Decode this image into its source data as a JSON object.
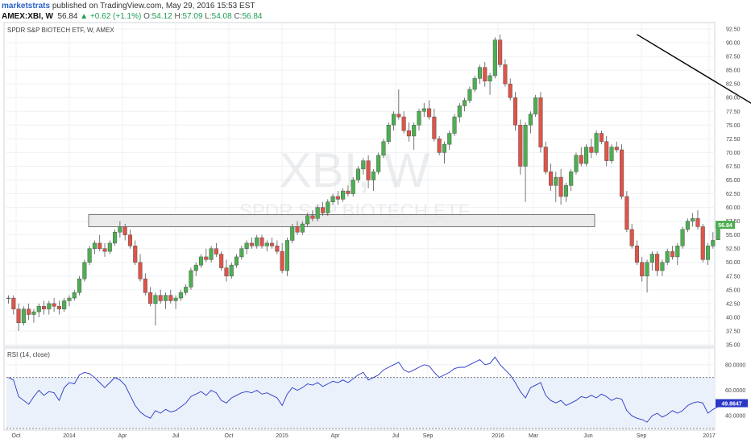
{
  "header": {
    "author": "marketstrats",
    "published_text": "published on TradingView.com, May 29, 2016 15:53 EST",
    "symbol": "AMEX:XBI, W",
    "last_price": "56.84",
    "change": "+0.62 (+1.1%)",
    "open_label": "O:",
    "open": "54.12",
    "high_label": "H:",
    "high": "57.09",
    "low_label": "L:",
    "low": "54.08",
    "close_label": "C:",
    "close": "56.84"
  },
  "colors": {
    "up": "#4caf50",
    "down": "#e05348",
    "grid": "#eef1f5",
    "trendline": "#000000",
    "zone_fill": "#e4e4e4",
    "zone_stroke": "#555555",
    "rsi_line": "#2a37c6",
    "rsi_band": "#eaf1fb",
    "price_tag": "#4caf50",
    "rsi_tag": "#2a37c6"
  },
  "chart_data": [
    {
      "type": "candlestick",
      "title": "SPDR S&P BIOTECH ETF, W, AMEX",
      "watermark_big": "XBI, W",
      "watermark_small": "SPDR S&P BIOTECH ETF",
      "ylim": [
        35.0,
        92.5
      ],
      "y_ticks": [
        "92.50",
        "90.00",
        "87.50",
        "85.00",
        "82.50",
        "80.00",
        "77.50",
        "75.00",
        "72.50",
        "70.00",
        "67.50",
        "65.00",
        "62.50",
        "60.00",
        "57.50",
        "55.00",
        "52.50",
        "50.00",
        "47.50",
        "45.00",
        "42.50",
        "40.00",
        "37.50",
        "35.00"
      ],
      "x_ticks": [
        "Oct",
        "2014",
        "Apr",
        "Jul",
        "Oct",
        "2015",
        "Apr",
        "Jul",
        "Sep",
        "2016",
        "Mar",
        "Jun",
        "Sep",
        "2017"
      ],
      "last_price_label": "56.84",
      "resistance_zone": [
        56.5,
        58.7
      ],
      "trendline": {
        "from": {
          "bar": 124,
          "value": 91.5
        },
        "to": {
          "bar": 214,
          "value": 41.5
        }
      },
      "series": [
        {
          "values": [
            [
              43.5,
              44.0,
              42.5,
              43.5
            ],
            [
              43.5,
              44.0,
              40.5,
              41.5
            ],
            [
              41.5,
              42.5,
              37.5,
              39.0
            ],
            [
              39.0,
              42.0,
              38.5,
              41.5
            ],
            [
              41.5,
              42.5,
              39.5,
              40.5
            ],
            [
              40.5,
              41.5,
              39.0,
              41.0
            ],
            [
              41.0,
              42.5,
              40.0,
              42.0
            ],
            [
              42.0,
              43.0,
              40.5,
              41.5
            ],
            [
              41.5,
              43.0,
              40.5,
              42.5
            ],
            [
              42.5,
              43.5,
              41.0,
              42.0
            ],
            [
              42.0,
              43.0,
              40.5,
              41.5
            ],
            [
              41.5,
              43.5,
              41.0,
              43.0
            ],
            [
              43.0,
              44.0,
              42.0,
              43.5
            ],
            [
              43.5,
              45.0,
              43.0,
              44.5
            ],
            [
              44.5,
              47.5,
              44.0,
              47.0
            ],
            [
              47.0,
              50.5,
              46.5,
              50.0
            ],
            [
              50.0,
              53.0,
              49.5,
              52.5
            ],
            [
              52.5,
              54.0,
              51.5,
              53.5
            ],
            [
              53.5,
              55.0,
              52.0,
              52.5
            ],
            [
              52.5,
              53.5,
              51.0,
              52.0
            ],
            [
              52.0,
              54.0,
              51.5,
              53.5
            ],
            [
              53.5,
              56.0,
              53.0,
              55.5
            ],
            [
              55.5,
              57.5,
              54.5,
              56.5
            ],
            [
              56.5,
              57.0,
              54.0,
              55.0
            ],
            [
              55.0,
              56.0,
              52.5,
              53.0
            ],
            [
              53.0,
              54.0,
              49.5,
              50.0
            ],
            [
              50.0,
              51.5,
              46.5,
              47.0
            ],
            [
              47.0,
              48.0,
              44.0,
              44.5
            ],
            [
              44.5,
              45.5,
              42.0,
              42.5
            ],
            [
              42.5,
              44.5,
              38.5,
              44.0
            ],
            [
              44.0,
              45.0,
              42.5,
              43.0
            ],
            [
              43.0,
              44.5,
              41.5,
              44.0
            ],
            [
              44.0,
              45.0,
              42.5,
              43.0
            ],
            [
              43.0,
              44.0,
              41.5,
              43.5
            ],
            [
              43.5,
              45.0,
              43.0,
              44.5
            ],
            [
              44.5,
              46.0,
              44.0,
              45.5
            ],
            [
              45.5,
              49.0,
              45.0,
              48.5
            ],
            [
              48.5,
              50.0,
              47.5,
              49.5
            ],
            [
              49.5,
              51.5,
              49.0,
              51.0
            ],
            [
              51.0,
              52.5,
              50.0,
              50.5
            ],
            [
              50.5,
              53.0,
              50.0,
              52.5
            ],
            [
              52.5,
              53.5,
              51.0,
              51.5
            ],
            [
              51.5,
              52.0,
              48.5,
              49.0
            ],
            [
              49.0,
              50.5,
              46.5,
              47.5
            ],
            [
              47.5,
              50.0,
              47.0,
              49.5
            ],
            [
              49.5,
              51.5,
              49.0,
              51.0
            ],
            [
              51.0,
              53.0,
              50.5,
              52.5
            ],
            [
              52.5,
              54.0,
              51.5,
              53.5
            ],
            [
              53.5,
              54.5,
              52.5,
              53.0
            ],
            [
              53.0,
              55.0,
              52.5,
              54.5
            ],
            [
              54.5,
              55.0,
              52.5,
              53.0
            ],
            [
              53.0,
              54.0,
              52.0,
              53.5
            ],
            [
              53.5,
              54.5,
              52.5,
              53.0
            ],
            [
              53.0,
              54.0,
              51.5,
              52.0
            ],
            [
              52.0,
              53.5,
              48.0,
              48.5
            ],
            [
              48.5,
              54.5,
              47.5,
              54.0
            ],
            [
              54.0,
              57.0,
              53.5,
              56.5
            ],
            [
              56.5,
              57.5,
              55.0,
              55.5
            ],
            [
              55.5,
              57.5,
              55.0,
              57.0
            ],
            [
              57.0,
              59.0,
              56.5,
              58.5
            ],
            [
              58.5,
              59.5,
              57.5,
              58.0
            ],
            [
              58.0,
              60.5,
              57.5,
              60.0
            ],
            [
              60.0,
              61.0,
              58.5,
              59.0
            ],
            [
              59.0,
              61.5,
              58.5,
              61.0
            ],
            [
              61.0,
              62.5,
              60.5,
              62.0
            ],
            [
              62.0,
              63.0,
              60.5,
              61.5
            ],
            [
              61.5,
              63.5,
              61.0,
              63.0
            ],
            [
              63.0,
              64.0,
              62.0,
              62.5
            ],
            [
              62.5,
              65.5,
              62.0,
              65.0
            ],
            [
              65.0,
              67.5,
              64.5,
              67.0
            ],
            [
              67.0,
              69.0,
              66.0,
              68.5
            ],
            [
              68.5,
              69.5,
              63.5,
              65.0
            ],
            [
              65.0,
              67.0,
              63.0,
              66.5
            ],
            [
              66.5,
              70.0,
              66.0,
              69.5
            ],
            [
              69.5,
              72.5,
              69.0,
              72.0
            ],
            [
              72.0,
              75.5,
              71.5,
              75.0
            ],
            [
              75.0,
              77.5,
              74.0,
              77.0
            ],
            [
              77.0,
              81.5,
              76.0,
              76.5
            ],
            [
              76.5,
              77.5,
              73.5,
              74.0
            ],
            [
              74.0,
              75.5,
              72.0,
              73.0
            ],
            [
              73.0,
              75.5,
              70.5,
              75.0
            ],
            [
              75.0,
              78.0,
              74.0,
              77.5
            ],
            [
              77.5,
              79.0,
              76.5,
              78.0
            ],
            [
              78.0,
              79.5,
              76.0,
              76.5
            ],
            [
              76.5,
              78.0,
              72.0,
              72.5
            ],
            [
              72.5,
              73.0,
              69.5,
              70.0
            ],
            [
              70.0,
              72.0,
              68.0,
              71.5
            ],
            [
              71.5,
              74.0,
              70.5,
              73.5
            ],
            [
              73.5,
              77.0,
              73.0,
              76.5
            ],
            [
              76.5,
              79.0,
              75.5,
              78.5
            ],
            [
              78.5,
              80.0,
              77.5,
              79.5
            ],
            [
              79.5,
              82.0,
              79.0,
              81.5
            ],
            [
              81.5,
              84.0,
              81.0,
              83.5
            ],
            [
              83.5,
              86.0,
              82.5,
              85.5
            ],
            [
              85.5,
              86.5,
              82.0,
              83.0
            ],
            [
              83.0,
              84.5,
              80.5,
              84.0
            ],
            [
              84.0,
              91.0,
              83.5,
              90.5
            ],
            [
              90.5,
              91.5,
              85.5,
              86.0
            ],
            [
              86.0,
              87.0,
              82.0,
              82.5
            ],
            [
              82.5,
              83.5,
              79.5,
              80.0
            ],
            [
              80.0,
              81.0,
              74.0,
              75.0
            ],
            [
              75.0,
              76.0,
              66.0,
              67.5
            ],
            [
              67.5,
              75.5,
              61.0,
              75.0
            ],
            [
              75.0,
              77.5,
              73.5,
              77.0
            ],
            [
              77.0,
              80.5,
              76.5,
              80.0
            ],
            [
              80.0,
              81.0,
              70.0,
              71.0
            ],
            [
              71.0,
              72.0,
              66.0,
              66.5
            ],
            [
              66.5,
              68.0,
              63.0,
              64.0
            ],
            [
              64.0,
              66.5,
              61.0,
              65.5
            ],
            [
              65.5,
              67.0,
              60.5,
              62.0
            ],
            [
              62.0,
              64.5,
              61.0,
              64.0
            ],
            [
              64.0,
              67.0,
              63.0,
              66.5
            ],
            [
              66.5,
              70.0,
              66.0,
              69.5
            ],
            [
              69.5,
              71.0,
              67.5,
              68.0
            ],
            [
              68.0,
              71.5,
              67.5,
              71.0
            ],
            [
              71.0,
              72.5,
              69.0,
              70.0
            ],
            [
              70.0,
              74.0,
              69.5,
              73.5
            ],
            [
              73.5,
              74.0,
              71.5,
              72.0
            ],
            [
              72.0,
              73.0,
              67.5,
              68.5
            ],
            [
              68.5,
              71.5,
              68.0,
              71.0
            ],
            [
              71.0,
              72.0,
              70.0,
              70.5
            ],
            [
              70.5,
              71.5,
              61.5,
              62.0
            ],
            [
              62.0,
              63.0,
              55.5,
              56.0
            ],
            [
              56.0,
              57.0,
              52.5,
              53.0
            ],
            [
              53.0,
              54.0,
              49.5,
              50.0
            ],
            [
              50.0,
              51.0,
              46.5,
              47.5
            ],
            [
              47.5,
              50.5,
              44.5,
              50.0
            ],
            [
              50.0,
              52.0,
              48.5,
              51.5
            ],
            [
              51.5,
              52.0,
              47.5,
              48.5
            ],
            [
              48.5,
              50.5,
              47.5,
              50.0
            ],
            [
              50.0,
              52.5,
              49.5,
              52.0
            ],
            [
              52.0,
              53.0,
              50.5,
              51.0
            ],
            [
              51.0,
              53.5,
              49.5,
              53.0
            ],
            [
              53.0,
              56.5,
              52.5,
              56.0
            ],
            [
              56.0,
              58.0,
              55.5,
              57.5
            ],
            [
              57.5,
              59.0,
              56.5,
              58.0
            ],
            [
              58.0,
              59.5,
              56.0,
              56.5
            ],
            [
              56.5,
              57.0,
              50.0,
              50.5
            ],
            [
              50.5,
              53.5,
              49.5,
              53.0
            ],
            [
              53.0,
              55.5,
              52.5,
              54.0
            ],
            [
              54.12,
              57.09,
              54.08,
              56.84
            ]
          ]
        }
      ]
    },
    {
      "type": "line",
      "title": "RSI (14, close)",
      "ylim": [
        30.0,
        90.0
      ],
      "y_ticks": [
        "80.0000",
        "60.0000",
        "40.0000"
      ],
      "levels": [
        70,
        30
      ],
      "last_value_label": "49.8647",
      "series": [
        {
          "values": [
            70,
            68,
            55,
            52,
            49,
            55,
            60,
            56,
            59,
            58,
            52,
            62,
            66,
            65,
            72,
            74,
            73,
            70,
            66,
            62,
            66,
            70,
            68,
            64,
            56,
            48,
            43,
            40,
            38,
            44,
            42,
            45,
            43,
            44,
            47,
            50,
            55,
            57,
            59,
            56,
            60,
            58,
            52,
            50,
            54,
            56,
            58,
            59,
            58,
            60,
            57,
            58,
            56,
            54,
            48,
            57,
            62,
            60,
            62,
            65,
            64,
            66,
            63,
            65,
            67,
            66,
            68,
            66,
            69,
            72,
            74,
            68,
            70,
            72,
            76,
            78,
            80,
            82,
            76,
            74,
            76,
            78,
            80,
            79,
            74,
            70,
            72,
            74,
            77,
            78,
            78,
            80,
            82,
            84,
            80,
            81,
            86,
            80,
            76,
            72,
            66,
            59,
            54,
            62,
            64,
            66,
            56,
            52,
            50,
            52,
            48,
            50,
            52,
            55,
            54,
            56,
            54,
            57,
            55,
            52,
            54,
            53,
            44,
            40,
            38,
            37,
            35,
            40,
            42,
            39,
            41,
            44,
            42,
            44,
            48,
            50,
            51,
            50,
            42,
            45,
            47,
            49.8647
          ]
        }
      ]
    }
  ]
}
